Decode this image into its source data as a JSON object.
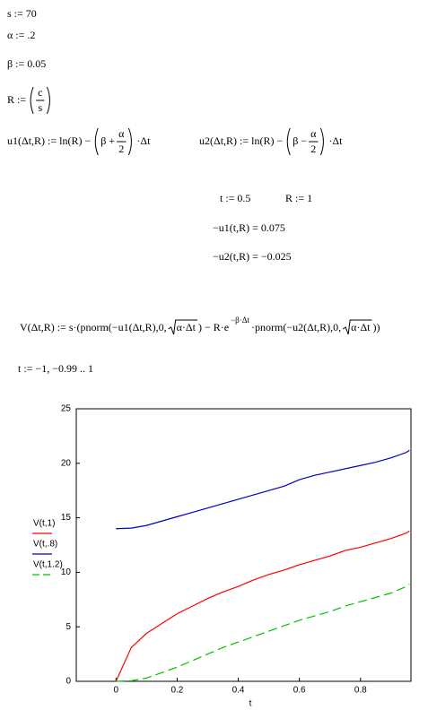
{
  "worksheet": {
    "s_def": "s := 70",
    "alpha_def": "α := .2",
    "beta_def": "β := 0.05",
    "R_def": {
      "lhs": "R :=",
      "num": "c",
      "den": "s"
    },
    "u1": {
      "lhs": "u1(Δt,R) := ln(R) −",
      "inner": "β +",
      "num": "α",
      "den": "2",
      "rhs": "·Δt"
    },
    "u2": {
      "lhs": "u2(Δt,R) := ln(R) −",
      "inner": "β −",
      "num": "α",
      "den": "2",
      "rhs": "·Δt"
    },
    "t_def": "t := 0.5",
    "R_val": "R := 1",
    "res1": "−u1(t,R) = 0.075",
    "res2": "−u2(t,R) = −0.025",
    "V_def": {
      "p1": "V(Δt,R) := s·(pnorm(−u1(Δt,R),0,",
      "sqrt1": "α·Δt",
      "p2": ") − R·e",
      "sup": "−β·Δt",
      "p3": "·pnorm(−u2(Δt,R),0,",
      "sqrt2": "α·Δt",
      "p4": "))"
    },
    "t_range": "t := −1, −0.99 .. 1"
  },
  "chart_data": {
    "type": "line",
    "xlabel": "t",
    "x": [
      0,
      0.05,
      0.1,
      0.15,
      0.2,
      0.25,
      0.3,
      0.35,
      0.4,
      0.45,
      0.5,
      0.55,
      0.6,
      0.65,
      0.7,
      0.75,
      0.8,
      0.85,
      0.9,
      0.95,
      0.96
    ],
    "series": [
      {
        "name": "V(t,1)",
        "color": "#ff0000",
        "dash": false,
        "values": [
          0,
          3.1,
          4.4,
          5.3,
          6.2,
          6.9,
          7.6,
          8.2,
          8.7,
          9.3,
          9.8,
          10.2,
          10.7,
          11.1,
          11.5,
          12.0,
          12.3,
          12.7,
          13.1,
          13.6,
          13.8
        ]
      },
      {
        "name": "V(t,.8)",
        "color": "#0000c0",
        "dash": false,
        "values": [
          14.0,
          14.05,
          14.3,
          14.7,
          15.1,
          15.5,
          15.9,
          16.3,
          16.7,
          17.1,
          17.5,
          17.9,
          18.5,
          18.9,
          19.2,
          19.5,
          19.8,
          20.1,
          20.5,
          21.0,
          21.2
        ]
      },
      {
        "name": "V(t,1.2)",
        "color": "#00c000",
        "dash": true,
        "values": [
          0,
          0.05,
          0.3,
          0.8,
          1.3,
          1.9,
          2.5,
          3.1,
          3.6,
          4.1,
          4.6,
          5.1,
          5.6,
          6.0,
          6.4,
          6.9,
          7.3,
          7.7,
          8.1,
          8.7,
          8.9
        ]
      }
    ],
    "xlim": [
      -0.13,
      0.965
    ],
    "ylim": [
      0,
      25
    ],
    "xticks": [
      0,
      0.2,
      0.4,
      0.6,
      0.8
    ],
    "yticks": [
      0,
      5,
      10,
      15,
      20,
      25
    ]
  }
}
